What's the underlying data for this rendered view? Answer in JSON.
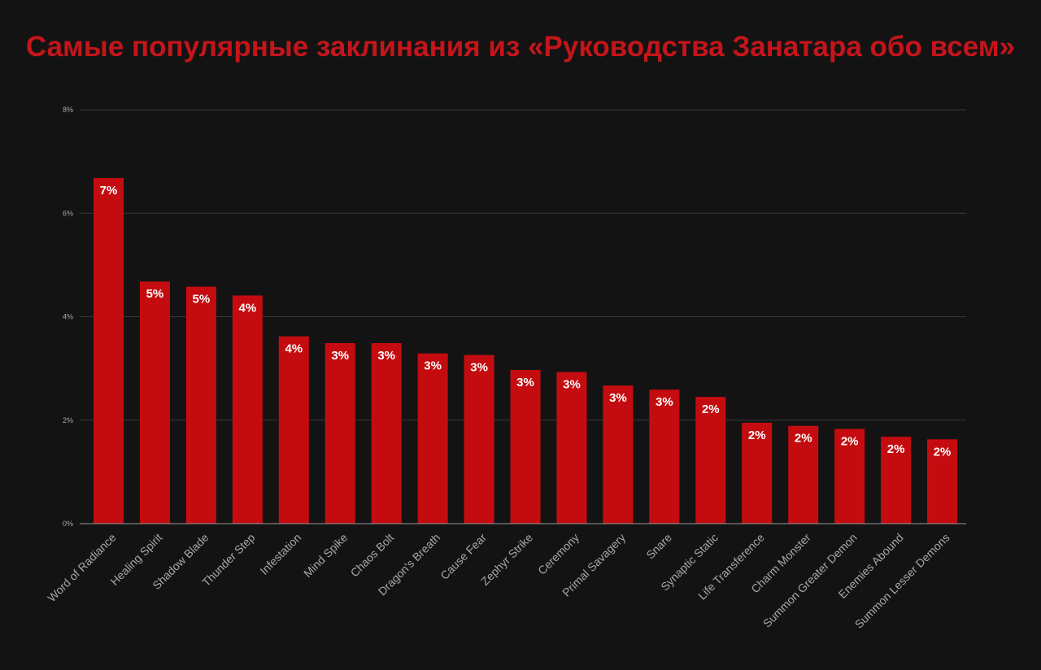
{
  "chart_data": {
    "type": "bar",
    "title": "Самые популярные заклинания из «Руководства Занатара обо всем»",
    "xlabel": "",
    "ylabel": "",
    "ylim": [
      0,
      8
    ],
    "y_ticks": [
      "0%",
      "2%",
      "4%",
      "6%",
      "8%"
    ],
    "y_tick_values": [
      0,
      2,
      4,
      6,
      8
    ],
    "grid": true,
    "categories": [
      "Word of Radiance",
      "Healing Spirit",
      "Shadow Blade",
      "Thunder Step",
      "Infestation",
      "Mind Spike",
      "Chaos Bolt",
      "Dragon's Breath",
      "Cause Fear",
      "Zephyr Strike",
      "Ceremony",
      "Primal Savagery",
      "Snare",
      "Synaptic Static",
      "Life Transference",
      "Charm Monster",
      "Summon Greater Demon",
      "Enemies Abound",
      "Summon Lesser Demons"
    ],
    "values": [
      6.68,
      4.68,
      4.58,
      4.41,
      3.62,
      3.49,
      3.49,
      3.29,
      3.26,
      2.97,
      2.93,
      2.67,
      2.59,
      2.45,
      1.95,
      1.89,
      1.83,
      1.68,
      1.63
    ],
    "data_labels": [
      "7%",
      "5%",
      "5%",
      "4%",
      "4%",
      "3%",
      "3%",
      "3%",
      "3%",
      "3%",
      "3%",
      "3%",
      "3%",
      "2%",
      "2%",
      "2%",
      "2%",
      "2%",
      "2%"
    ],
    "bar_color": "#c40c10",
    "background_color": "#141313",
    "grid_color": "#3a3838",
    "axis_color": "#9a9a9a",
    "tick_label_color": "#a8a8a8",
    "data_label_color": "#ffffff",
    "title_color": "#c4151a"
  }
}
